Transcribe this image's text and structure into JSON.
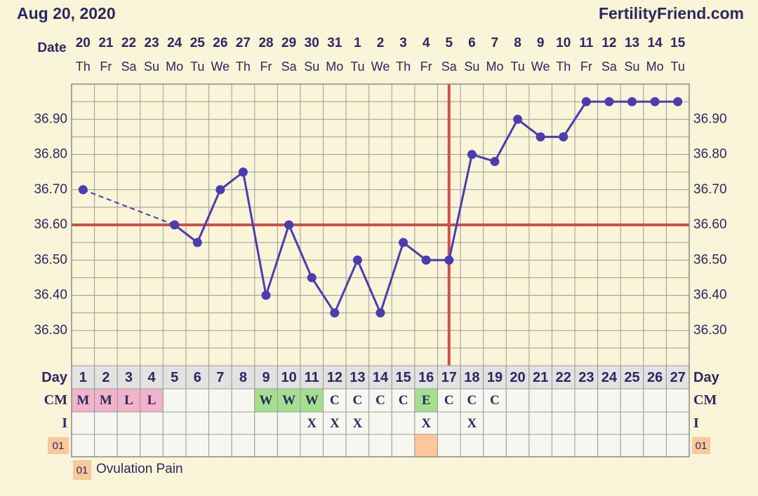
{
  "chart_data": {
    "type": "line",
    "title": "Aug 20, 2020",
    "site": "FertilityFriend.com",
    "date_label": "Date",
    "categories": [
      "20",
      "21",
      "22",
      "23",
      "24",
      "25",
      "26",
      "27",
      "28",
      "29",
      "30",
      "31",
      "1",
      "2",
      "3",
      "4",
      "5",
      "6",
      "7",
      "8",
      "9",
      "10",
      "11",
      "12",
      "13",
      "14",
      "15"
    ],
    "weekdays": [
      "Th",
      "Fr",
      "Sa",
      "Su",
      "Mo",
      "Tu",
      "We",
      "Th",
      "Fr",
      "Sa",
      "Su",
      "Mo",
      "Tu",
      "We",
      "Th",
      "Fr",
      "Sa",
      "Su",
      "Mo",
      "Tu",
      "We",
      "Th",
      "Fr",
      "Sa",
      "Su",
      "Mo",
      "Tu"
    ],
    "values": [
      36.7,
      null,
      null,
      null,
      36.6,
      36.55,
      36.7,
      36.75,
      36.4,
      36.6,
      36.45,
      36.35,
      36.5,
      36.35,
      36.55,
      36.5,
      36.5,
      36.8,
      36.78,
      36.9,
      36.85,
      36.85,
      36.95,
      36.95,
      36.95,
      36.95,
      36.95
    ],
    "color": "#4a3db0",
    "ylim": [
      36.2,
      37.0
    ],
    "yticks": [
      {
        "value": 36.3,
        "label": "36.30"
      },
      {
        "value": 36.4,
        "label": "36.40"
      },
      {
        "value": 36.5,
        "label": "36.50"
      },
      {
        "value": 36.6,
        "label": "36.60"
      },
      {
        "value": 36.7,
        "label": "36.70"
      },
      {
        "value": 36.8,
        "label": "36.80"
      },
      {
        "value": 36.9,
        "label": "36.90"
      }
    ],
    "ygrid": [
      36.2,
      36.25,
      36.3,
      36.35,
      36.4,
      36.45,
      36.5,
      36.55,
      36.6,
      36.65,
      36.7,
      36.75,
      36.8,
      36.85,
      36.9,
      36.95,
      37.0
    ],
    "coverline": 36.6,
    "ovulation_day": 17,
    "marker_color": "#cc4f4c",
    "rows": {
      "day": {
        "label": "Day",
        "values": [
          "1",
          "2",
          "3",
          "4",
          "5",
          "6",
          "7",
          "8",
          "9",
          "10",
          "11",
          "12",
          "13",
          "14",
          "15",
          "16",
          "17",
          "18",
          "19",
          "20",
          "21",
          "22",
          "23",
          "24",
          "25",
          "26",
          "27"
        ]
      },
      "cm": {
        "label": "CM",
        "values": [
          "M",
          "M",
          "L",
          "L",
          null,
          null,
          null,
          null,
          "W",
          "W",
          "W",
          "C",
          "C",
          "C",
          "C",
          "E",
          "C",
          "C",
          "C",
          null,
          null,
          null,
          null,
          null,
          null,
          null,
          null
        ],
        "colors": {
          "M": "#f2b3cb",
          "L": "#f2b3cb",
          "W": "#a3df8e",
          "E": "#a3df8e"
        }
      },
      "i": {
        "label": "I",
        "values": [
          null,
          null,
          null,
          null,
          null,
          null,
          null,
          null,
          null,
          null,
          "X",
          "X",
          "X",
          null,
          null,
          "X",
          null,
          "X",
          null,
          null,
          null,
          null,
          null,
          null,
          null,
          null,
          null
        ]
      },
      "pain": {
        "label": "01",
        "marked_days": [
          16
        ]
      }
    },
    "legend": {
      "code": "01",
      "label": "Ovulation Pain",
      "color": "#fcc79a"
    }
  }
}
